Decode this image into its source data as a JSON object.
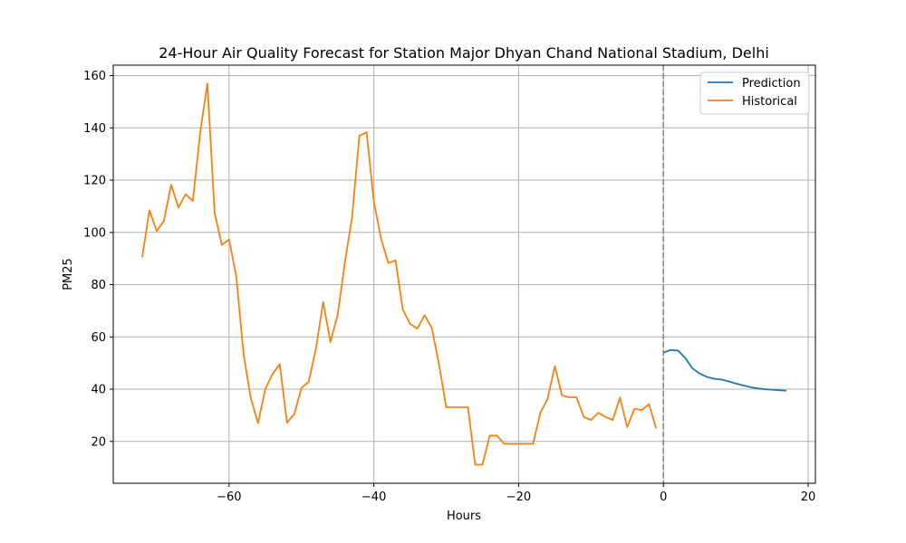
{
  "chart_data": {
    "type": "line",
    "title": "24-Hour Air Quality Forecast for Station Major Dhyan Chand National Stadium, Delhi",
    "xlabel": "Hours",
    "ylabel": "PM25",
    "xlim": [
      -76,
      21
    ],
    "ylim": [
      4,
      164
    ],
    "xticks": [
      -60,
      -40,
      -20,
      0,
      20
    ],
    "yticks": [
      20,
      40,
      60,
      80,
      100,
      120,
      140,
      160
    ],
    "xtick_labels": [
      "−60",
      "−40",
      "−20",
      "0",
      "20"
    ],
    "ytick_labels": [
      "20",
      "40",
      "60",
      "80",
      "100",
      "120",
      "140",
      "160"
    ],
    "grid": true,
    "legend_position": "top-right",
    "vline": {
      "x": 0,
      "style": "dashed",
      "color": "#808080"
    },
    "series": [
      {
        "name": "Prediction",
        "color": "#1f77b4",
        "x": [
          0,
          1,
          2,
          3,
          4,
          5,
          6,
          7,
          8,
          9,
          10,
          11,
          12,
          13,
          14,
          15,
          16,
          17
        ],
        "y": [
          54,
          55,
          54.8,
          52,
          48,
          46,
          44.7,
          44,
          43.7,
          43,
          42.2,
          41.5,
          40.8,
          40.3,
          40,
          39.8,
          39.6,
          39.4
        ]
      },
      {
        "name": "Historical",
        "color": "#ff7f0e",
        "x": [
          -72,
          -71,
          -70,
          -69,
          -68,
          -67,
          -66,
          -65,
          -64,
          -63,
          -62,
          -61,
          -60,
          -59,
          -58,
          -57,
          -56,
          -55,
          -54,
          -53,
          -52,
          -51,
          -50,
          -49,
          -48,
          -47,
          -46,
          -45,
          -44,
          -43,
          -42,
          -41,
          -40,
          -39,
          -38,
          -37,
          -36,
          -35,
          -34,
          -33,
          -32,
          -31,
          -30,
          -29,
          -28,
          -27,
          -26,
          -25,
          -24,
          -23,
          -22,
          -21,
          -20,
          -19,
          -18,
          -17,
          -16,
          -15,
          -14,
          -13,
          -12,
          -11,
          -10,
          -9,
          -8,
          -7,
          -6,
          -5,
          -4,
          -3,
          -2,
          -1
        ],
        "y": [
          90.5,
          108.5,
          100.5,
          104.5,
          118.3,
          109.5,
          114.6,
          112,
          138,
          157,
          107.5,
          95.2,
          97.3,
          83,
          53.5,
          36.5,
          27,
          40,
          45.8,
          49.6,
          27.2,
          30.4,
          40.5,
          42.8,
          55.5,
          73.4,
          58,
          68.5,
          88.5,
          106,
          137,
          138.3,
          111.8,
          97.5,
          88.3,
          89.3,
          70.5,
          65,
          63.2,
          68.3,
          63.5,
          49.5,
          33.1,
          33.1,
          33.1,
          33.1,
          11.1,
          11.1,
          22.2,
          22.2,
          19.1,
          19.1,
          19.1,
          19.1,
          19.1,
          31,
          36.3,
          48.8,
          37.6,
          36.9,
          36.9,
          29.4,
          28.2,
          31,
          29.4,
          28.2,
          36.8,
          25.5,
          32.5,
          32,
          34.3,
          25
        ]
      }
    ]
  }
}
